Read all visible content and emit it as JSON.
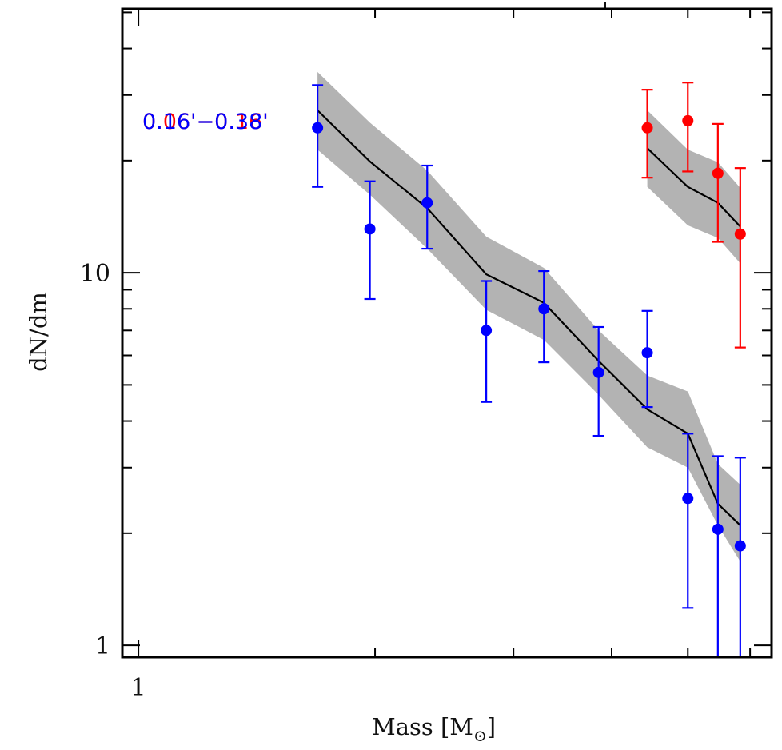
{
  "chart_data": {
    "type": "scatter",
    "title": "",
    "xlabel": "Mass [M_sun]",
    "xlabel_main": "Mass [M",
    "xlabel_sub": "⊙",
    "xlabel_close": "]",
    "ylabel": "dN/dm",
    "xscale": "log",
    "yscale": "log",
    "xlim": [
      0.954,
      6.39
    ],
    "ylim": [
      0.929,
      51.1
    ],
    "grid": false,
    "x_ticks": [
      {
        "value": 1,
        "label": "1",
        "major": true
      },
      {
        "value": 2,
        "label": "",
        "major": false
      },
      {
        "value": 3,
        "label": "",
        "major": false
      },
      {
        "value": 4,
        "label": "",
        "major": false
      },
      {
        "value": 5,
        "label": "",
        "major": false
      },
      {
        "value": 6,
        "label": "",
        "major": false
      }
    ],
    "y_ticks": [
      {
        "value": 1,
        "label": "1",
        "major": true
      },
      {
        "value": 2,
        "label": "",
        "major": false
      },
      {
        "value": 3,
        "label": "",
        "major": false
      },
      {
        "value": 4,
        "label": "",
        "major": false
      },
      {
        "value": 5,
        "label": "",
        "major": false
      },
      {
        "value": 6,
        "label": "",
        "major": false
      },
      {
        "value": 7,
        "label": "",
        "major": false
      },
      {
        "value": 8,
        "label": "",
        "major": false
      },
      {
        "value": 9,
        "label": "",
        "major": false
      },
      {
        "value": 10,
        "label": "10",
        "major": true
      },
      {
        "value": 20,
        "label": "",
        "major": false
      },
      {
        "value": 30,
        "label": "",
        "major": false
      },
      {
        "value": 40,
        "label": "",
        "major": false
      },
      {
        "value": 50,
        "label": "",
        "major": false
      }
    ],
    "annotations": [
      {
        "text": "0.06'−0.16'",
        "color": "#ff0000",
        "position": "upper-left"
      },
      {
        "text": "0.16'−0.38'",
        "color": "#0000ff",
        "position": "upper-left"
      }
    ],
    "series": [
      {
        "name": "0.16'−0.38'",
        "color": "#0000ff",
        "points": [
          {
            "x": 1.69,
            "y": 24.5,
            "err_low": 17.0,
            "err_high": 31.9
          },
          {
            "x": 1.97,
            "y": 13.1,
            "err_low": 8.5,
            "err_high": 17.6
          },
          {
            "x": 2.33,
            "y": 15.4,
            "err_low": 11.6,
            "err_high": 19.4
          },
          {
            "x": 2.77,
            "y": 7.0,
            "err_low": 4.5,
            "err_high": 9.5
          },
          {
            "x": 3.28,
            "y": 8.0,
            "err_low": 5.75,
            "err_high": 10.1
          },
          {
            "x": 3.85,
            "y": 5.4,
            "err_low": 3.65,
            "err_high": 7.15
          },
          {
            "x": 4.44,
            "y": 6.1,
            "err_low": 4.36,
            "err_high": 7.9
          },
          {
            "x": 5.0,
            "y": 2.48,
            "err_low": 1.26,
            "err_high": 3.7
          },
          {
            "x": 5.46,
            "y": 2.05,
            "err_low": 0.5,
            "err_high": 3.22
          },
          {
            "x": 5.83,
            "y": 1.85,
            "err_low": 0.5,
            "err_high": 3.19
          }
        ],
        "model": {
          "x": [
            1.69,
            1.97,
            2.33,
            2.77,
            3.28,
            3.85,
            4.44,
            5.0,
            5.46,
            5.83
          ],
          "y": [
            27.3,
            19.9,
            14.9,
            9.9,
            8.3,
            5.8,
            4.3,
            3.7,
            2.4,
            2.1
          ],
          "upper": [
            34.6,
            25.3,
            18.8,
            12.5,
            10.3,
            7.0,
            5.3,
            4.8,
            3.07,
            2.7
          ],
          "lower": [
            21.4,
            16.2,
            11.6,
            7.95,
            6.6,
            4.7,
            3.4,
            3.0,
            2.1,
            1.68
          ],
          "line_color": "#000000",
          "band_color": "#b3b3b3"
        }
      },
      {
        "name": "0.06'−0.16'",
        "color": "#ff0000",
        "points": [
          {
            "x": 4.44,
            "y": 24.5,
            "err_low": 18.0,
            "err_high": 31.0
          },
          {
            "x": 5.0,
            "y": 25.6,
            "err_low": 18.7,
            "err_high": 32.4
          },
          {
            "x": 5.46,
            "y": 18.5,
            "err_low": 12.1,
            "err_high": 25.1
          },
          {
            "x": 5.83,
            "y": 12.7,
            "err_low": 6.3,
            "err_high": 19.1
          }
        ],
        "model": {
          "x": [
            4.44,
            5.0,
            5.46,
            5.83
          ],
          "y": [
            21.6,
            17.0,
            15.4,
            13.3
          ],
          "upper": [
            27.3,
            21.4,
            19.8,
            16.9
          ],
          "lower": [
            17.0,
            13.4,
            12.4,
            10.6
          ],
          "line_color": "#000000",
          "band_color": "#b3b3b3"
        }
      }
    ]
  }
}
